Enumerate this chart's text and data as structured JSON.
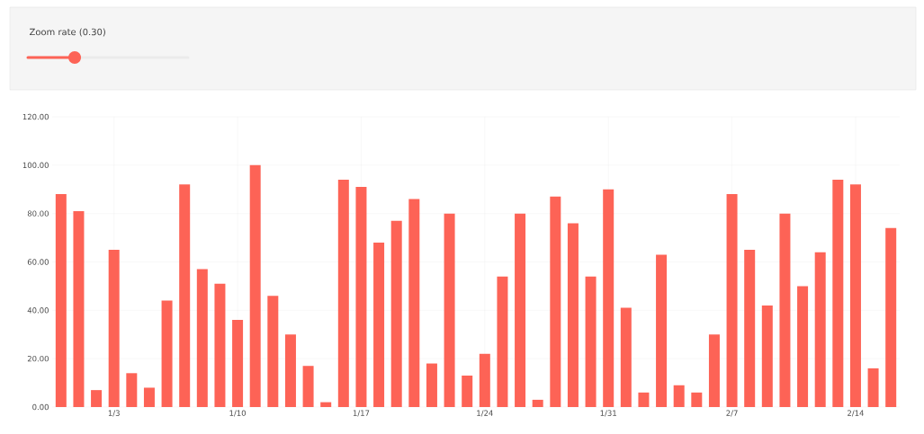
{
  "chart_data": {
    "type": "bar",
    "categories": [
      null,
      null,
      null,
      "1/3",
      null,
      null,
      null,
      null,
      null,
      null,
      "1/10",
      null,
      null,
      null,
      null,
      null,
      null,
      "1/17",
      null,
      null,
      null,
      null,
      null,
      null,
      "1/24",
      null,
      null,
      null,
      null,
      null,
      null,
      "1/31",
      null,
      null,
      null,
      null,
      null,
      null,
      "2/7",
      null,
      null,
      null,
      null,
      null,
      null,
      "2/14",
      null,
      null
    ],
    "values": [
      88,
      81,
      7,
      65,
      14,
      8,
      44,
      92,
      57,
      51,
      36,
      100,
      46,
      30,
      17,
      2,
      94,
      91,
      68,
      77,
      86,
      18,
      80,
      13,
      22,
      54,
      80,
      3,
      87,
      76,
      54,
      90,
      41,
      6,
      63,
      9,
      6,
      30,
      88,
      65,
      42,
      80,
      50,
      64,
      94,
      92,
      16,
      74
    ],
    "color": "#fd6356",
    "ylim": [
      0,
      120
    ],
    "yticks": [
      {
        "value": 0,
        "label": "0.00"
      },
      {
        "value": 20,
        "label": "20.00"
      },
      {
        "value": 40,
        "label": "40.00"
      },
      {
        "value": 60,
        "label": "60.00"
      },
      {
        "value": 80,
        "label": "80.00"
      },
      {
        "value": 100,
        "label": "100.00"
      },
      {
        "value": 120,
        "label": "120.00"
      }
    ],
    "grid": true,
    "annotations": [
      "Zoom rate (0.30)"
    ]
  }
}
